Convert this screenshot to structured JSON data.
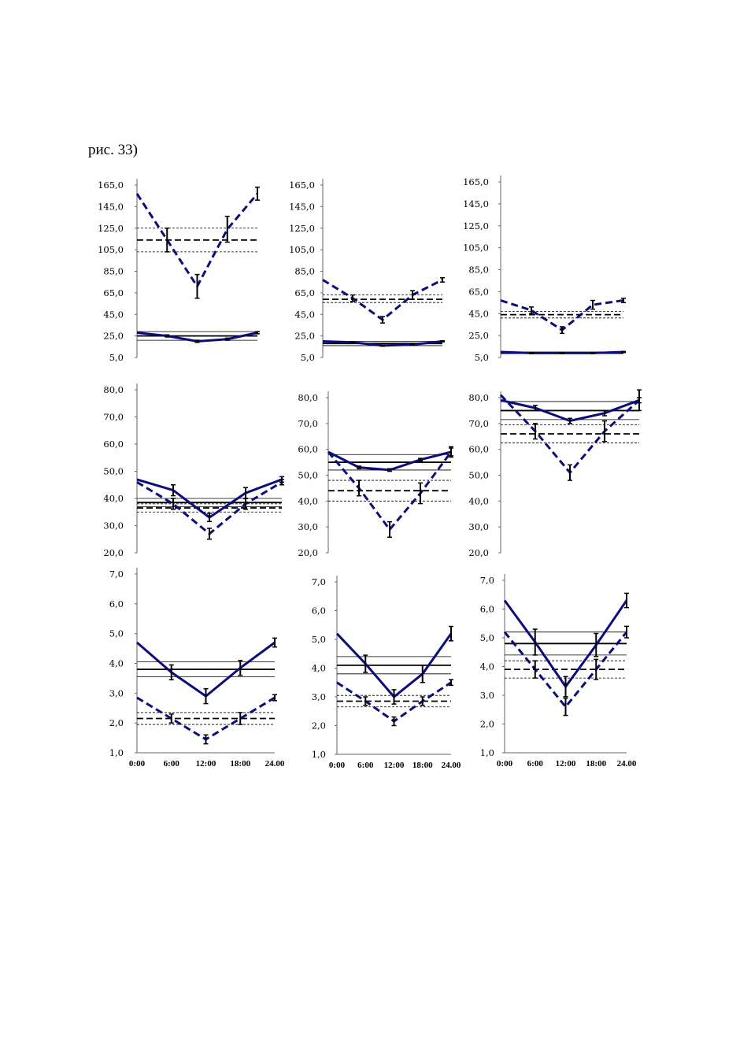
{
  "caption": "рис. 33)",
  "colors": {
    "series": "#0d0d7a",
    "reference": "#000000"
  },
  "chart_data": [
    {
      "type": "line",
      "ylim": [
        5,
        165
      ],
      "yticks": [
        "5,0",
        "25,0",
        "45,0",
        "65,0",
        "85,0",
        "105,0",
        "125,0",
        "145,0",
        "165,0"
      ],
      "xticks": [],
      "series": [
        {
          "style": "dashed",
          "values": [
            157,
            114,
            71,
            124,
            157
          ],
          "errors": [
            0,
            11,
            11,
            12,
            6
          ]
        },
        {
          "style": "solid",
          "values": [
            28,
            25,
            20,
            22,
            28
          ],
          "errors": [
            0,
            1,
            1,
            1,
            1
          ]
        }
      ],
      "ref_dashed": {
        "mean": 114,
        "band": [
          103,
          125
        ]
      },
      "ref_solid": {
        "mean": 25,
        "band": [
          21,
          29
        ]
      }
    },
    {
      "type": "line",
      "ylim": [
        5,
        165
      ],
      "yticks": [
        "5,0",
        "25,0",
        "45,0",
        "65,0",
        "85,0",
        "105,0",
        "125,0",
        "145,0",
        "165,0"
      ],
      "xticks": [],
      "series": [
        {
          "style": "dashed",
          "values": [
            77,
            60,
            40,
            63,
            77
          ],
          "errors": [
            0,
            3,
            3,
            4,
            2
          ]
        },
        {
          "style": "solid",
          "values": [
            20,
            19,
            16,
            17,
            20
          ],
          "errors": [
            0,
            0.5,
            0.5,
            0.5,
            0.5
          ]
        }
      ],
      "ref_dashed": {
        "mean": 59,
        "band": [
          56,
          63
        ]
      },
      "ref_solid": {
        "mean": 18,
        "band": [
          16,
          20
        ]
      }
    },
    {
      "type": "line",
      "ylim": [
        5,
        165
      ],
      "yticks": [
        "5,0",
        "25,0",
        "45,0",
        "65,0",
        "85,0",
        "105,0",
        "125,0",
        "145,0",
        "165,0"
      ],
      "xticks": [],
      "series": [
        {
          "style": "dashed",
          "values": [
            57,
            48,
            30,
            53,
            57
          ],
          "errors": [
            0,
            3,
            3,
            4,
            2
          ]
        },
        {
          "style": "solid",
          "values": [
            10,
            9,
            9,
            9,
            10
          ],
          "errors": [
            0,
            0.5,
            0.5,
            0.5,
            0.5
          ]
        }
      ],
      "ref_dashed": {
        "mean": 44,
        "band": [
          41,
          47
        ]
      },
      "ref_solid": {
        "mean": 9,
        "band": [
          8.5,
          10
        ]
      }
    },
    {
      "type": "line",
      "ylim": [
        20,
        80
      ],
      "yticks": [
        "20,0",
        "30,0",
        "40,0",
        "50,0",
        "60,0",
        "70,0",
        "80,0"
      ],
      "xticks": [],
      "series": [
        {
          "style": "dashed",
          "values": [
            46,
            38,
            27,
            38,
            46
          ],
          "errors": [
            0,
            2,
            2,
            2,
            1
          ]
        },
        {
          "style": "solid",
          "values": [
            47,
            43,
            33,
            42,
            47
          ],
          "errors": [
            0,
            2,
            1.5,
            2,
            1
          ]
        }
      ],
      "ref_dashed": {
        "mean": 36.5,
        "band": [
          35,
          38
        ]
      },
      "ref_solid": {
        "mean": 38.5,
        "band": [
          37,
          40
        ]
      }
    },
    {
      "type": "line",
      "ylim": [
        20,
        80
      ],
      "yticks": [
        "20,0",
        "30,0",
        "40,0",
        "50,0",
        "60,0",
        "70,0",
        "80,0"
      ],
      "xticks": [],
      "series": [
        {
          "style": "dashed",
          "values": [
            59,
            45,
            29,
            43,
            59
          ],
          "errors": [
            0,
            3,
            3,
            4,
            2
          ]
        },
        {
          "style": "solid",
          "values": [
            59,
            53,
            52,
            56,
            59
          ],
          "errors": [
            0,
            0.5,
            0.5,
            0.5,
            1.5
          ]
        }
      ],
      "ref_dashed": {
        "mean": 44,
        "band": [
          40,
          48
        ]
      },
      "ref_solid": {
        "mean": 55,
        "band": [
          52,
          58
        ]
      }
    },
    {
      "type": "line",
      "ylim": [
        20,
        80
      ],
      "yticks": [
        "20,0",
        "30,0",
        "40,0",
        "50,0",
        "60,0",
        "70,0",
        "80,0"
      ],
      "xticks": [],
      "series": [
        {
          "style": "dashed",
          "values": [
            81,
            67,
            51,
            67,
            79
          ],
          "errors": [
            0,
            3,
            3,
            4,
            4
          ]
        },
        {
          "style": "solid",
          "values": [
            79,
            76,
            71,
            74,
            79
          ],
          "errors": [
            0,
            1,
            1,
            1,
            1
          ]
        }
      ],
      "ref_dashed": {
        "mean": 66,
        "band": [
          62.5,
          69.5
        ]
      },
      "ref_solid": {
        "mean": 75,
        "band": [
          71.5,
          78.5
        ]
      }
    },
    {
      "type": "line",
      "ylim": [
        1,
        7
      ],
      "yticks": [
        "1,0",
        "2,0",
        "3,0",
        "4,0",
        "5,0",
        "6,0",
        "7,0"
      ],
      "xticks": [
        "0:00",
        "6:00",
        "12:00",
        "18:00",
        "24.00"
      ],
      "series": [
        {
          "style": "dashed",
          "values": [
            2.85,
            2.15,
            1.45,
            2.15,
            2.85
          ],
          "errors": [
            0,
            0.15,
            0.15,
            0.2,
            0.1
          ]
        },
        {
          "style": "solid",
          "values": [
            4.7,
            3.7,
            2.9,
            3.85,
            4.7
          ],
          "errors": [
            0,
            0.25,
            0.25,
            0.25,
            0.15
          ]
        }
      ],
      "ref_dashed": {
        "mean": 2.15,
        "band": [
          1.95,
          2.35
        ]
      },
      "ref_solid": {
        "mean": 3.8,
        "band": [
          3.55,
          4.05
        ]
      }
    },
    {
      "type": "line",
      "ylim": [
        1,
        7
      ],
      "yticks": [
        "1,0",
        "2,0",
        "3,0",
        "4,0",
        "5,0",
        "6,0",
        "7,0"
      ],
      "xticks": [
        "0:00",
        "6:00",
        "12:00",
        "18:00",
        "24.00"
      ],
      "series": [
        {
          "style": "dashed",
          "values": [
            3.5,
            2.85,
            2.15,
            2.85,
            3.5
          ],
          "errors": [
            0,
            0.15,
            0.15,
            0.15,
            0.1
          ]
        },
        {
          "style": "solid",
          "values": [
            5.2,
            4.15,
            3.0,
            3.8,
            5.2
          ],
          "errors": [
            0,
            0.3,
            0.25,
            0.3,
            0.25
          ]
        }
      ],
      "ref_dashed": {
        "mean": 2.85,
        "band": [
          2.65,
          3.05
        ]
      },
      "ref_solid": {
        "mean": 4.1,
        "band": [
          3.8,
          4.4
        ]
      }
    },
    {
      "type": "line",
      "ylim": [
        1,
        7
      ],
      "yticks": [
        "1,0",
        "2,0",
        "3,0",
        "4,0",
        "5,0",
        "6,0",
        "7,0"
      ],
      "xticks": [
        "0:00",
        "6:00",
        "12:00",
        "18:00",
        "24.00"
      ],
      "series": [
        {
          "style": "dashed",
          "values": [
            5.2,
            3.9,
            2.6,
            3.9,
            5.2
          ],
          "errors": [
            0,
            0.3,
            0.3,
            0.35,
            0.2
          ]
        },
        {
          "style": "solid",
          "values": [
            6.3,
            4.85,
            3.3,
            4.75,
            6.3
          ],
          "errors": [
            0,
            0.45,
            0.35,
            0.4,
            0.25
          ]
        }
      ],
      "ref_dashed": {
        "mean": 3.9,
        "band": [
          3.6,
          4.2
        ]
      },
      "ref_solid": {
        "mean": 4.8,
        "band": [
          4.4,
          5.2
        ]
      }
    }
  ]
}
